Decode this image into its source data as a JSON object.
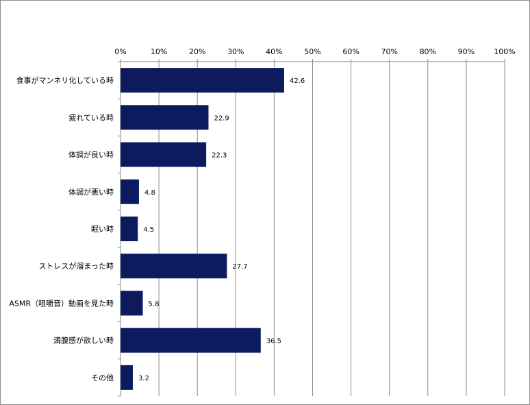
{
  "chart_data": {
    "type": "bar",
    "orientation": "horizontal",
    "categories": [
      "食事がマンネリ化している時",
      "疲れている時",
      "体調が良い時",
      "体調が悪い時",
      "眠い時",
      "ストレスが溜まった時",
      "ASMR（咀嚼音）動画を見た時",
      "満腹感が欲しい時",
      "その他"
    ],
    "values": [
      42.6,
      22.9,
      22.3,
      4.8,
      4.5,
      27.7,
      5.8,
      36.5,
      3.2
    ],
    "value_labels": [
      "42.6",
      "22.9",
      "22.3",
      "4.8",
      "4.5",
      "27.7",
      "5.8",
      "36.5",
      "3.2"
    ],
    "x_ticks": [
      "0%",
      "10%",
      "20%",
      "30%",
      "40%",
      "50%",
      "60%",
      "70%",
      "80%",
      "90%",
      "100%"
    ],
    "xlim": [
      0,
      100
    ],
    "x_axis_position": "top",
    "grid": true,
    "legend": "none",
    "bar_color": "#0d1b5e"
  }
}
